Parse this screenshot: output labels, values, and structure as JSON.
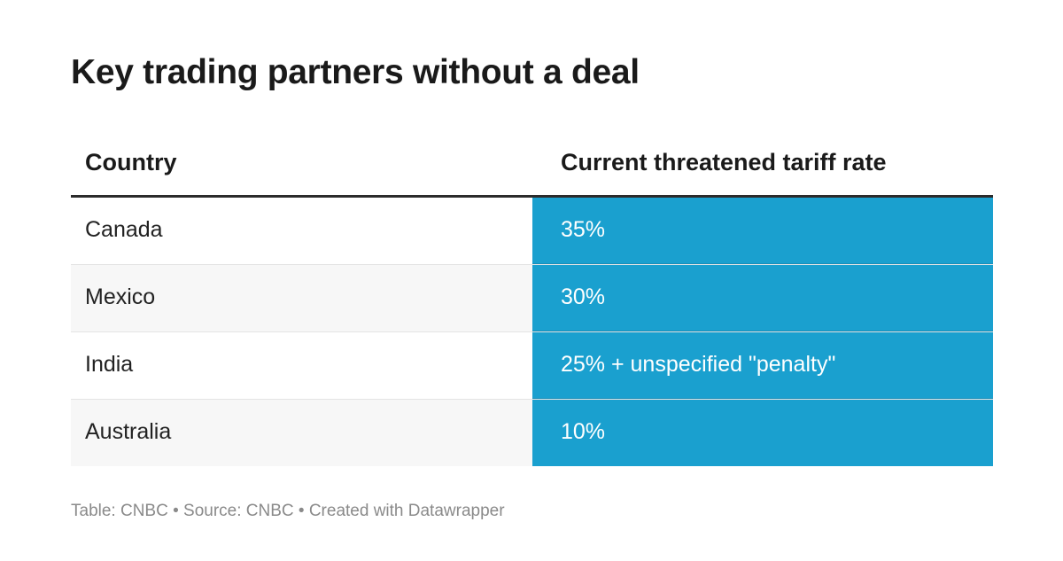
{
  "title": "Key trading partners without a deal",
  "chart_data": {
    "type": "table",
    "title": "Key trading partners without a deal",
    "columns": [
      "Country",
      "Current threatened tariff rate"
    ],
    "rows": [
      {
        "country": "Canada",
        "rate": "35%"
      },
      {
        "country": "Mexico",
        "rate": "30%"
      },
      {
        "country": "India",
        "rate": "25% + unspecified \"penalty\""
      },
      {
        "country": "Australia",
        "rate": "10%"
      }
    ],
    "highlight_color": "#1aa0cf"
  },
  "footer": "Table: CNBC • Source: CNBC • Created with Datawrapper"
}
